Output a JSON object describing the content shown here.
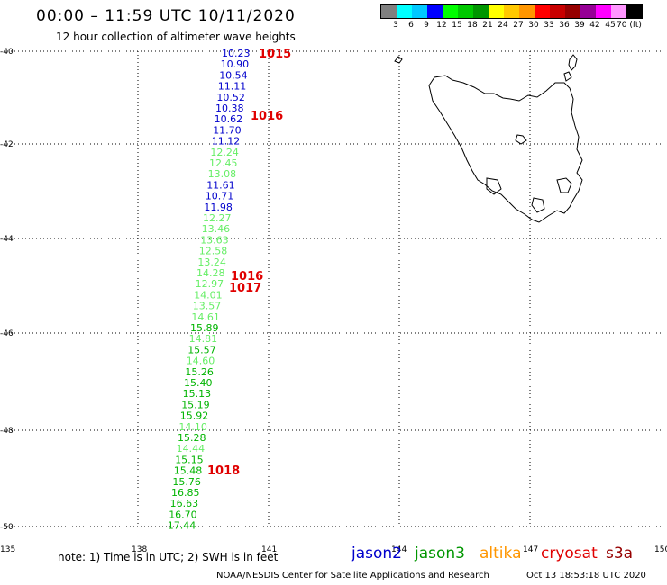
{
  "header": {
    "title": "00:00 – 11:59 UTC 10/11/2020",
    "subtitle": "12 hour collection of altimeter wave heights"
  },
  "color_scale": {
    "labels": [
      "3",
      "6",
      "9",
      "12",
      "15",
      "18",
      "21",
      "24",
      "27",
      "30",
      "33",
      "36",
      "39",
      "42",
      "45",
      "70 (ft)"
    ],
    "colors": [
      "#808080",
      "#00ffff",
      "#00c8ff",
      "#0000ff",
      "#00ff00",
      "#00c800",
      "#009600",
      "#ffff00",
      "#ffc800",
      "#ff9600",
      "#ff0000",
      "#c80000",
      "#960000",
      "#960096",
      "#ff00ff",
      "#ff96ff",
      "#000000"
    ]
  },
  "axes": {
    "lat_labels": [
      "-40",
      "-42",
      "-44",
      "-46",
      "-48",
      "-50"
    ],
    "lon_labels": [
      "135",
      "138",
      "141",
      "144",
      "147",
      "150"
    ]
  },
  "swh_readings": [
    {
      "value": "10.23",
      "color": "#0000cc"
    },
    {
      "value": "10.90",
      "color": "#0000cc"
    },
    {
      "value": "10.54",
      "color": "#0000cc"
    },
    {
      "value": "11.11",
      "color": "#0000cc"
    },
    {
      "value": "10.52",
      "color": "#0000cc"
    },
    {
      "value": "10.38",
      "color": "#0000cc"
    },
    {
      "value": "10.62",
      "color": "#0000cc"
    },
    {
      "value": "11.70",
      "color": "#0000cc"
    },
    {
      "value": "11.12",
      "color": "#0000cc"
    },
    {
      "value": "12.24",
      "color": "#66ee66"
    },
    {
      "value": "12.45",
      "color": "#66ee66"
    },
    {
      "value": "13.08",
      "color": "#66ee66"
    },
    {
      "value": "11.61",
      "color": "#0000cc"
    },
    {
      "value": "10.71",
      "color": "#0000cc"
    },
    {
      "value": "11.98",
      "color": "#0000cc"
    },
    {
      "value": "12.27",
      "color": "#66ee66"
    },
    {
      "value": "13.46",
      "color": "#66ee66"
    },
    {
      "value": "13.63",
      "color": "#66ee66"
    },
    {
      "value": "12.58",
      "color": "#66ee66"
    },
    {
      "value": "13.24",
      "color": "#66ee66"
    },
    {
      "value": "14.28",
      "color": "#66ee66"
    },
    {
      "value": "12.97",
      "color": "#66ee66"
    },
    {
      "value": "14.01",
      "color": "#66ee66"
    },
    {
      "value": "13.57",
      "color": "#66ee66"
    },
    {
      "value": "14.61",
      "color": "#66ee66"
    },
    {
      "value": "15.89",
      "color": "#00b400"
    },
    {
      "value": "14.81",
      "color": "#66ee66"
    },
    {
      "value": "15.57",
      "color": "#00b400"
    },
    {
      "value": "14.60",
      "color": "#66ee66"
    },
    {
      "value": "15.26",
      "color": "#00b400"
    },
    {
      "value": "15.40",
      "color": "#00b400"
    },
    {
      "value": "15.13",
      "color": "#00b400"
    },
    {
      "value": "15.19",
      "color": "#00b400"
    },
    {
      "value": "15.92",
      "color": "#00b400"
    },
    {
      "value": "14.10",
      "color": "#66ee66"
    },
    {
      "value": "15.28",
      "color": "#00b400"
    },
    {
      "value": "14.44",
      "color": "#66ee66"
    },
    {
      "value": "15.15",
      "color": "#00b400"
    },
    {
      "value": "15.48",
      "color": "#00b400"
    },
    {
      "value": "15.76",
      "color": "#00b400"
    },
    {
      "value": "16.85",
      "color": "#00b400"
    },
    {
      "value": "16.63",
      "color": "#00b400"
    },
    {
      "value": "16.70",
      "color": "#00b400"
    },
    {
      "value": "17.44",
      "color": "#00b400"
    }
  ],
  "pressure_labels": [
    {
      "value": "1015",
      "color": "#e00000"
    },
    {
      "value": "1016",
      "color": "#e00000"
    },
    {
      "value": "1016",
      "color": "#e00000"
    },
    {
      "value": "1017",
      "color": "#e00000"
    },
    {
      "value": "1018",
      "color": "#e00000"
    }
  ],
  "footer": {
    "note": "note:  1) Time is in UTC;  2) SWH is in feet",
    "credit": "NOAA/NESDIS Center for Satellite Applications and Research",
    "generated": "Oct 13 18:53:18 UTC 2020",
    "satellites": [
      {
        "name": "jason2",
        "color": "#0000cc"
      },
      {
        "name": "jason3",
        "color": "#009600"
      },
      {
        "name": "altika",
        "color": "#ff9600"
      },
      {
        "name": "cryosat",
        "color": "#e00000"
      },
      {
        "name": "s3a",
        "color": "#960000"
      }
    ]
  }
}
